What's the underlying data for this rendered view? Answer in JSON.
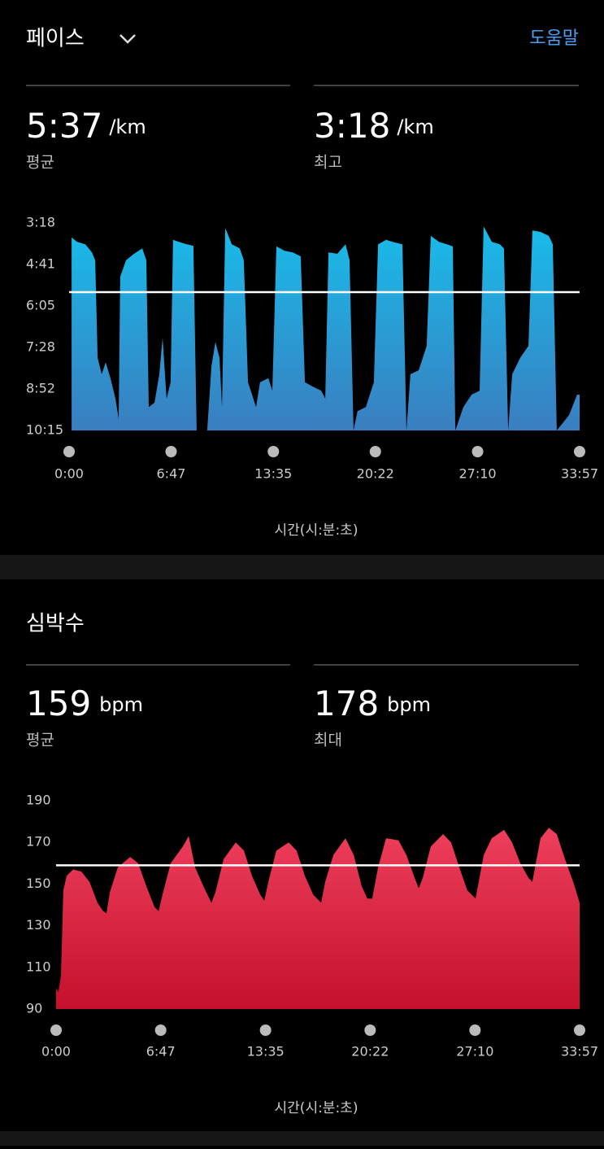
{
  "sections": [
    {
      "title": "페이스",
      "help": "도움말",
      "stats": [
        {
          "value": 337,
          "label": "5:37",
          "unit": "/km",
          "caption": "평균"
        },
        {
          "value": 198,
          "label": "3:18",
          "unit": "/km",
          "caption": "최고"
        }
      ]
    },
    {
      "title": "심박수",
      "stats": [
        {
          "value": 159,
          "unit": "bpm",
          "caption": "평균"
        },
        {
          "value": 178,
          "unit": "bpm",
          "caption": "최대"
        }
      ]
    }
  ],
  "chart_data": [
    {
      "type": "area",
      "xlabel": "시간(시:분:초)",
      "x": [
        10,
        32,
        65,
        91,
        104,
        114,
        130,
        146,
        165,
        185,
        198,
        204,
        227,
        259,
        292,
        308,
        318,
        341,
        360,
        373,
        389,
        405,
        415,
        438,
        470,
        496,
        509,
        551,
        568,
        584,
        600,
        610,
        623,
        649,
        681,
        697,
        714,
        746,
        762,
        795,
        811,
        827,
        860,
        892,
        924,
        941,
        973,
        1006,
        1022,
        1035,
        1070,
        1103,
        1119,
        1135,
        1151,
        1184,
        1216,
        1233,
        1265,
        1297,
        1330,
        1346,
        1362,
        1395,
        1427,
        1443,
        1476,
        1508,
        1531,
        1541,
        1573,
        1606,
        1638,
        1654,
        1687,
        1719,
        1735,
        1752,
        1768,
        1800,
        1833,
        1849,
        1881,
        1914,
        1930,
        1946,
        1995,
        2027,
        2037
      ],
      "series": [
        {
          "color": "#19bcea",
          "gradient_to": "#3a7ec0",
          "values": [
            227,
            236,
            241,
            257,
            273,
            469,
            502,
            478,
            510,
            551,
            592,
            306,
            273,
            260,
            249,
            273,
            568,
            559,
            502,
            429,
            551,
            518,
            232,
            236,
            241,
            244,
            615,
            615,
            486,
            437,
            469,
            568,
            208,
            241,
            249,
            273,
            518,
            568,
            518,
            510,
            535,
            245,
            254,
            257,
            265,
            518,
            527,
            535,
            551,
            257,
            260,
            241,
            273,
            615,
            576,
            568,
            518,
            241,
            232,
            237,
            241,
            615,
            502,
            494,
            445,
            224,
            236,
            241,
            245,
            615,
            568,
            543,
            535,
            205,
            236,
            241,
            249,
            615,
            502,
            469,
            445,
            213,
            216,
            224,
            241,
            615,
            584,
            543,
            543
          ]
        }
      ],
      "xlim": [
        0,
        2037
      ],
      "ylim": [
        615,
        198
      ],
      "xticks": [
        {
          "value": 0,
          "label": "0:00"
        },
        {
          "value": 407,
          "label": "6:47"
        },
        {
          "value": 815,
          "label": "13:35"
        },
        {
          "value": 1222,
          "label": "20:22"
        },
        {
          "value": 1630,
          "label": "27:10"
        },
        {
          "value": 2037,
          "label": "33:57"
        }
      ],
      "yticks": [
        {
          "value": 198,
          "label": "3:18"
        },
        {
          "value": 281,
          "label": "4:41"
        },
        {
          "value": 365,
          "label": "6:05"
        },
        {
          "value": 448,
          "label": "7:28"
        },
        {
          "value": 532,
          "label": "8:52"
        },
        {
          "value": 615,
          "label": "10:15"
        }
      ]
    },
    {
      "type": "area",
      "xlabel": "시간(시:분:초)",
      "x": [
        0,
        9,
        19,
        28,
        41,
        66,
        98,
        130,
        161,
        183,
        196,
        209,
        240,
        288,
        319,
        351,
        383,
        399,
        414,
        446,
        493,
        516,
        541,
        573,
        604,
        620,
        652,
        699,
        731,
        762,
        794,
        810,
        826,
        857,
        905,
        936,
        968,
        1000,
        1031,
        1047,
        1079,
        1126,
        1158,
        1189,
        1211,
        1230,
        1253,
        1284,
        1332,
        1363,
        1395,
        1411,
        1427,
        1458,
        1506,
        1537,
        1569,
        1600,
        1632,
        1664,
        1695,
        1743,
        1774,
        1806,
        1838,
        1853,
        1885,
        1917,
        1948,
        1980,
        2012,
        2037
      ],
      "series": [
        {
          "color": "#ee3f5c",
          "gradient_to": "#c4102c",
          "values": [
            100,
            98,
            106,
            147,
            154,
            157,
            156,
            151,
            141,
            137,
            136,
            146,
            158,
            163,
            160,
            149,
            139,
            137,
            145,
            160,
            168,
            173,
            158,
            149,
            141,
            146,
            162,
            170,
            166,
            154,
            145,
            142,
            151,
            166,
            170,
            166,
            154,
            145,
            141,
            151,
            164,
            172,
            164,
            149,
            143,
            143,
            158,
            172,
            171,
            164,
            153,
            148,
            153,
            168,
            174,
            170,
            158,
            147,
            143,
            164,
            172,
            176,
            170,
            160,
            153,
            151,
            172,
            177,
            174,
            162,
            151,
            141
          ]
        }
      ],
      "xlim": [
        0,
        2037
      ],
      "ylim": [
        90,
        190
      ],
      "xticks": [
        {
          "value": 0,
          "label": "0:00"
        },
        {
          "value": 407,
          "label": "6:47"
        },
        {
          "value": 815,
          "label": "13:35"
        },
        {
          "value": 1222,
          "label": "20:22"
        },
        {
          "value": 1630,
          "label": "27:10"
        },
        {
          "value": 2037,
          "label": "33:57"
        }
      ],
      "yticks": [
        90,
        110,
        130,
        150,
        170,
        190
      ]
    }
  ]
}
